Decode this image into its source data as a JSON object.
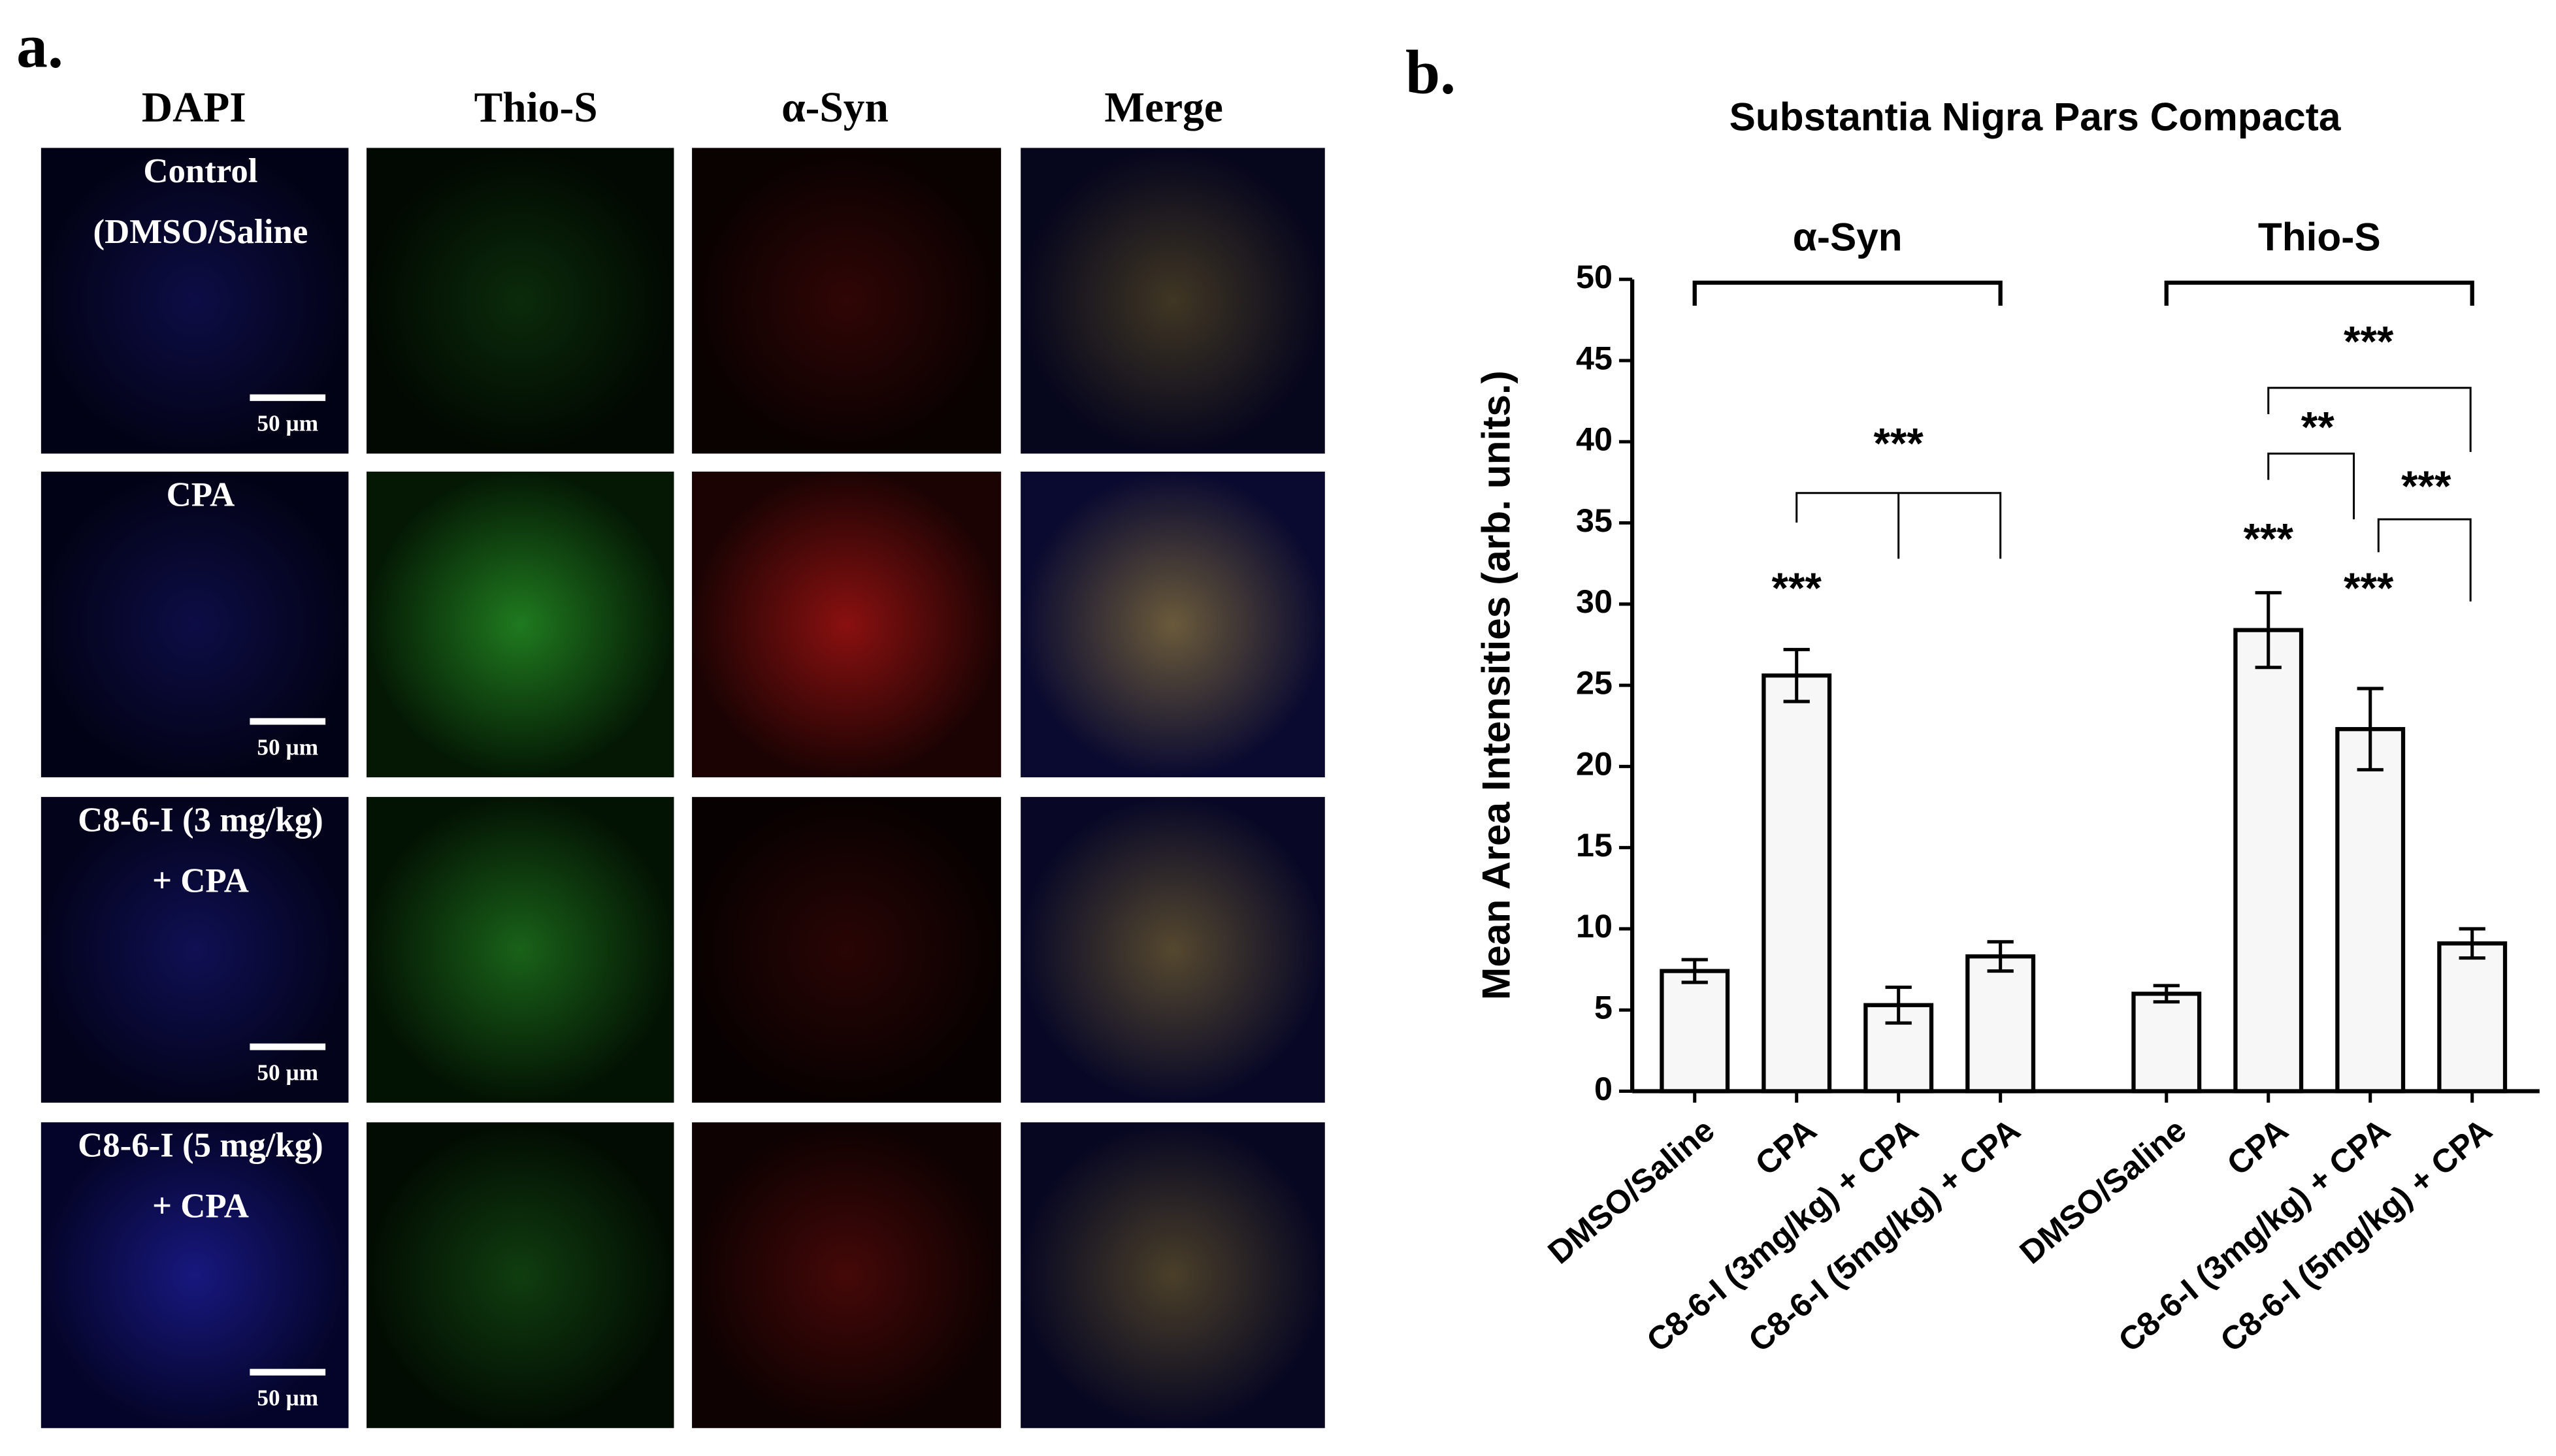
{
  "panel_a": {
    "label": "a.",
    "columns": [
      "DAPI",
      "Thio-S",
      "α-Syn",
      "Merge"
    ],
    "rows": [
      [
        "Control",
        "(DMSO/Saline"
      ],
      [
        "CPA"
      ],
      [
        "C8-6-I (3 mg/kg)",
        "+ CPA"
      ],
      [
        "C8-6-I (5 mg/kg)",
        "+ CPA"
      ]
    ],
    "scale_bar": "50 µm"
  },
  "panel_b": {
    "label": "b."
  },
  "chart_data": {
    "type": "bar",
    "title": "Substantia Nigra Pars Compacta",
    "y_label": "Mean Area Intensities (arb. units.)",
    "group_labels": [
      "α-Syn",
      "Thio-S"
    ],
    "categories": [
      "DMSO/Saline",
      "CPA",
      "C8-6-I (3mg/kg) + CPA",
      "C8-6-I (5mg/kg) + CPA",
      "DMSO/Saline",
      "CPA",
      "C8-6-I (3mg/kg) + CPA",
      "C8-6-I (5mg/kg) + CPA"
    ],
    "values": [
      7.4,
      25.6,
      5.3,
      8.3,
      6.0,
      28.4,
      22.3,
      9.1
    ],
    "errors": [
      0.7,
      1.6,
      1.1,
      0.9,
      0.5,
      2.3,
      2.5,
      0.9
    ],
    "color": "#f7f7f7",
    "ylim": [
      0,
      50
    ],
    "yticks": [
      0,
      5,
      10,
      15,
      20,
      25,
      30,
      35,
      40,
      45,
      50
    ],
    "annotations": [
      "***",
      "***",
      "***",
      "***",
      "**",
      "***",
      "***"
    ]
  }
}
